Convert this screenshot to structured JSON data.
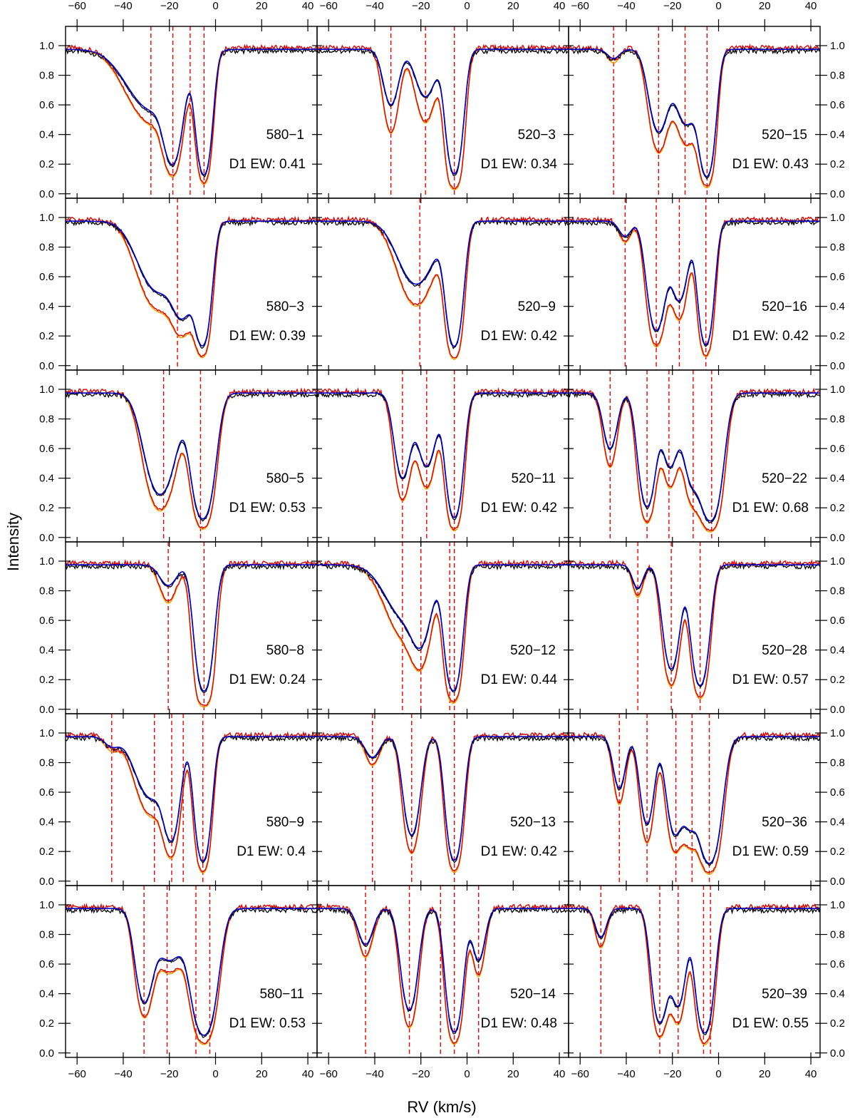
{
  "chart_data": {
    "type": "line",
    "xlabel": "RV (km/s)",
    "ylabel": "Intensity",
    "xlim": [
      -65,
      44
    ],
    "ylim": [
      -0.03,
      1.13
    ],
    "x_ticks": [
      -60,
      -40,
      -20,
      0,
      20,
      40
    ],
    "y_ticks": [
      0.0,
      0.2,
      0.4,
      0.6,
      0.8,
      1.0
    ],
    "x_tick_labels": [
      "−60",
      "−40",
      "−20",
      "0",
      "20",
      "40"
    ],
    "y_tick_labels": [
      "0.0",
      "0.2",
      "0.4",
      "0.6",
      "0.8",
      "1.0"
    ],
    "series_colors": {
      "observed_D2": "#000000",
      "fit_D2": "#0000cc",
      "observed_D1": "#dd0000",
      "fit_D1": "#f0a000",
      "components": "#ee0000"
    },
    "panels": [
      {
        "name": "580−1",
        "ew_text": "D1 EW: 0.41",
        "components": [
          [
            -18.5,
            0.55,
            3.2
          ],
          [
            -5,
            0.9,
            2.6
          ],
          [
            -27,
            0.25,
            10
          ]
        ],
        "d1_scale": 1.35,
        "markers": [
          -28,
          -18.5,
          -11,
          -5
        ]
      },
      {
        "name": "520−3",
        "ew_text": "D1 EW: 0.34",
        "components": [
          [
            -33,
            0.22,
            3
          ],
          [
            -18,
            0.18,
            4
          ],
          [
            -5.5,
            0.9,
            2.8
          ]
        ],
        "d1_scale": 1.8,
        "markers": [
          -33,
          -18,
          -5.5
        ]
      },
      {
        "name": "520−15",
        "ew_text": "D1 EW: 0.43",
        "components": [
          [
            -45.5,
            0.03,
            2.5
          ],
          [
            -26,
            0.38,
            3.6
          ],
          [
            -14,
            0.33,
            4.2
          ],
          [
            -5,
            0.93,
            2.7
          ]
        ],
        "d1_scale": 1.5,
        "markers": [
          -45.5,
          -26,
          -14.5,
          -5
        ]
      },
      {
        "name": "580−3",
        "ew_text": "D1 EW: 0.39",
        "components": [
          [
            -25,
            0.3,
            7.5
          ],
          [
            -14,
            0.4,
            4
          ],
          [
            -5.5,
            0.85,
            2.8
          ]
        ],
        "d1_scale": 1.45,
        "markers": [
          -16.5
        ]
      },
      {
        "name": "520−9",
        "ew_text": "D1 EW: 0.42",
        "components": [
          [
            -22,
            0.26,
            7
          ],
          [
            -5.5,
            0.9,
            2.8
          ]
        ],
        "d1_scale": 1.55,
        "markers": [
          -20.5
        ]
      },
      {
        "name": "520−16",
        "ew_text": "D1 EW: 0.42",
        "components": [
          [
            -40.5,
            0.05,
            2.5
          ],
          [
            -27,
            0.64,
            3.2
          ],
          [
            -17,
            0.36,
            3.2
          ],
          [
            -5.5,
            0.88,
            2.6
          ]
        ],
        "d1_scale": 1.45,
        "markers": [
          -40.5,
          -27,
          -17,
          -5.5
        ]
      },
      {
        "name": "580−5",
        "ew_text": "D1 EW: 0.53",
        "components": [
          [
            -24,
            0.55,
            5.5
          ],
          [
            -5.5,
            0.93,
            3.8
          ]
        ],
        "d1_scale": 1.4,
        "markers": [
          -22.5,
          -6.5
        ]
      },
      {
        "name": "520−11",
        "ew_text": "D1 EW: 0.42",
        "components": [
          [
            -28,
            0.4,
            3
          ],
          [
            -17.5,
            0.32,
            3.5
          ],
          [
            -5.5,
            0.9,
            2.8
          ]
        ],
        "d1_scale": 1.55,
        "markers": [
          -28,
          -17.5,
          -5.5
        ]
      },
      {
        "name": "520−22",
        "ew_text": "D1 EW: 0.68",
        "components": [
          [
            -47,
            0.22,
            2.7
          ],
          [
            -31,
            0.7,
            3
          ],
          [
            -21,
            0.32,
            3
          ],
          [
            -12,
            0.38,
            3
          ],
          [
            -3.5,
            0.98,
            3.8
          ]
        ],
        "d1_scale": 1.5,
        "markers": [
          -47,
          -31,
          -21.5,
          -11,
          -3
        ]
      },
      {
        "name": "580−8",
        "ew_text": "D1 EW: 0.24",
        "components": [
          [
            -20.5,
            0.07,
            3.5
          ],
          [
            -5,
            0.94,
            3
          ]
        ],
        "d1_scale": 2.0,
        "markers": [
          -20.5,
          -5
        ]
      },
      {
        "name": "520−12",
        "ew_text": "D1 EW: 0.44",
        "components": [
          [
            -26,
            0.22,
            8
          ],
          [
            -20,
            0.22,
            3.5
          ],
          [
            -7.5,
            0.22,
            2.5
          ],
          [
            -5.5,
            0.75,
            2.8
          ]
        ],
        "d1_scale": 1.55,
        "markers": [
          -28,
          -20,
          -7.5,
          -5.5
        ]
      },
      {
        "name": "520−28",
        "ew_text": "D1 EW: 0.57",
        "components": [
          [
            -35,
            0.08,
            2.2
          ],
          [
            -20.5,
            0.58,
            3
          ],
          [
            -8,
            0.82,
            3
          ]
        ],
        "d1_scale": 1.45,
        "markers": [
          -35,
          -20.5,
          -8
        ]
      },
      {
        "name": "580−9",
        "ew_text": "D1 EW: 0.4",
        "components": [
          [
            -45,
            0.03,
            3
          ],
          [
            -28,
            0.25,
            6
          ],
          [
            -19,
            0.5,
            3
          ],
          [
            -5.5,
            0.9,
            2.7
          ]
        ],
        "d1_scale": 1.45,
        "markers": [
          -45,
          -26.5,
          -19,
          -14,
          -5.5
        ]
      },
      {
        "name": "520−13",
        "ew_text": "D1 EW: 0.42",
        "components": [
          [
            -41,
            0.07,
            3
          ],
          [
            -24,
            0.52,
            3
          ],
          [
            -5.5,
            0.88,
            2.8
          ]
        ],
        "d1_scale": 1.45,
        "markers": [
          -41,
          -24,
          -5.5
        ]
      },
      {
        "name": "520−36",
        "ew_text": "D1 EW: 0.59",
        "components": [
          [
            -43,
            0.2,
            2.4
          ],
          [
            -31,
            0.42,
            2.6
          ],
          [
            -19,
            0.5,
            3
          ],
          [
            -12.5,
            0.35,
            2.6
          ],
          [
            -4,
            0.95,
            3.8
          ]
        ],
        "d1_scale": 1.45,
        "markers": [
          -43,
          -31,
          -18.5,
          -11.5,
          -4
        ]
      },
      {
        "name": "580−11",
        "ew_text": "D1 EW: 0.53",
        "components": [
          [
            -31,
            0.45,
            3.2
          ],
          [
            -20,
            0.2,
            5.5
          ],
          [
            -5,
            0.95,
            4.2
          ]
        ],
        "d1_scale": 1.35,
        "markers": [
          -31,
          -21,
          -8.5,
          -2.5
        ]
      },
      {
        "name": "520−14",
        "ew_text": "D1 EW: 0.48",
        "components": [
          [
            -44,
            0.13,
            3
          ],
          [
            -25,
            0.55,
            3
          ],
          [
            -5.5,
            0.88,
            2.8
          ],
          [
            5,
            0.2,
            2.5
          ]
        ],
        "d1_scale": 1.45,
        "markers": [
          -44,
          -25,
          -11.5,
          -5.5,
          5
        ]
      },
      {
        "name": "520−39",
        "ew_text": "D1 EW: 0.55",
        "components": [
          [
            -51,
            0.1,
            2.3
          ],
          [
            -25.5,
            0.7,
            2.8
          ],
          [
            -17.5,
            0.5,
            2.8
          ],
          [
            -6,
            0.9,
            3
          ]
        ],
        "d1_scale": 1.45,
        "markers": [
          -51,
          -25.5,
          -17.5,
          -6.5,
          -3.5
        ]
      }
    ]
  }
}
